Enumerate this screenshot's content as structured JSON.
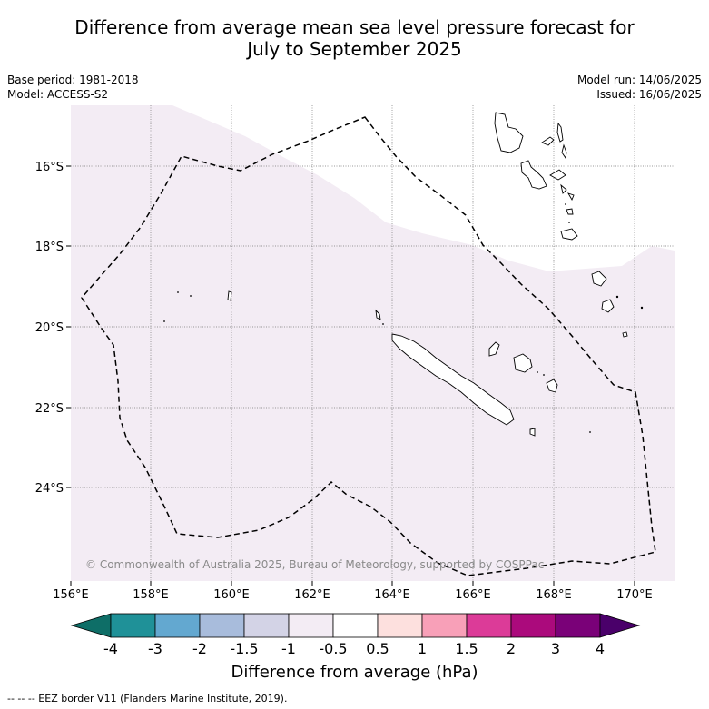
{
  "title_line1": "Difference from average mean sea level pressure forecast for",
  "title_line2": "July to September 2025",
  "meta_left": {
    "base_period": "Base period: 1981-2018",
    "model": "Model: ACCESS-S2"
  },
  "meta_right": {
    "model_run": "Model run: 14/06/2025",
    "issued": "Issued: 16/06/2025"
  },
  "map": {
    "lon_range": [
      156,
      171
    ],
    "lat_range": [
      -26.0,
      -14.5
    ],
    "lat_ticks": [
      {
        "value": -16,
        "label": "16°S"
      },
      {
        "value": -18,
        "label": "18°S"
      },
      {
        "value": -20,
        "label": "20°S"
      },
      {
        "value": -22,
        "label": "22°S"
      },
      {
        "value": -24,
        "label": "24°S"
      }
    ],
    "lon_ticks": [
      {
        "value": 156,
        "label": "156°E"
      },
      {
        "value": 158,
        "label": "158°E"
      },
      {
        "value": 160,
        "label": "160°E"
      },
      {
        "value": 162,
        "label": "162°E"
      },
      {
        "value": 164,
        "label": "164°E"
      },
      {
        "value": 166,
        "label": "166°E"
      },
      {
        "value": 168,
        "label": "168°E"
      },
      {
        "value": 170,
        "label": "170°E"
      }
    ],
    "copyright": "© Commonwealth of Australia 2025, Bureau of Meteorology, supported by COSPPac",
    "anomaly_fill_color": "#f3ecf4",
    "anomaly_fill_class": "-1 to -0.5"
  },
  "colorbar": {
    "ticks": [
      "-4",
      "-3",
      "-2",
      "-1.5",
      "-1",
      "-0.5",
      "0.5",
      "1",
      "1.5",
      "2",
      "3",
      "4"
    ],
    "colors": [
      "#0e6e67",
      "#1f9198",
      "#63a8d0",
      "#a8bcdc",
      "#d3d3e6",
      "#f3ecf4",
      "#ffffff",
      "#fde0de",
      "#f8a0b8",
      "#dc3b98",
      "#ab0a7c",
      "#7a0178",
      "#4a006a"
    ],
    "label": "Difference from average (hPa)"
  },
  "footnote": "--  --  -- EEZ border V11 (Flanders Marine Institute, 2019)."
}
